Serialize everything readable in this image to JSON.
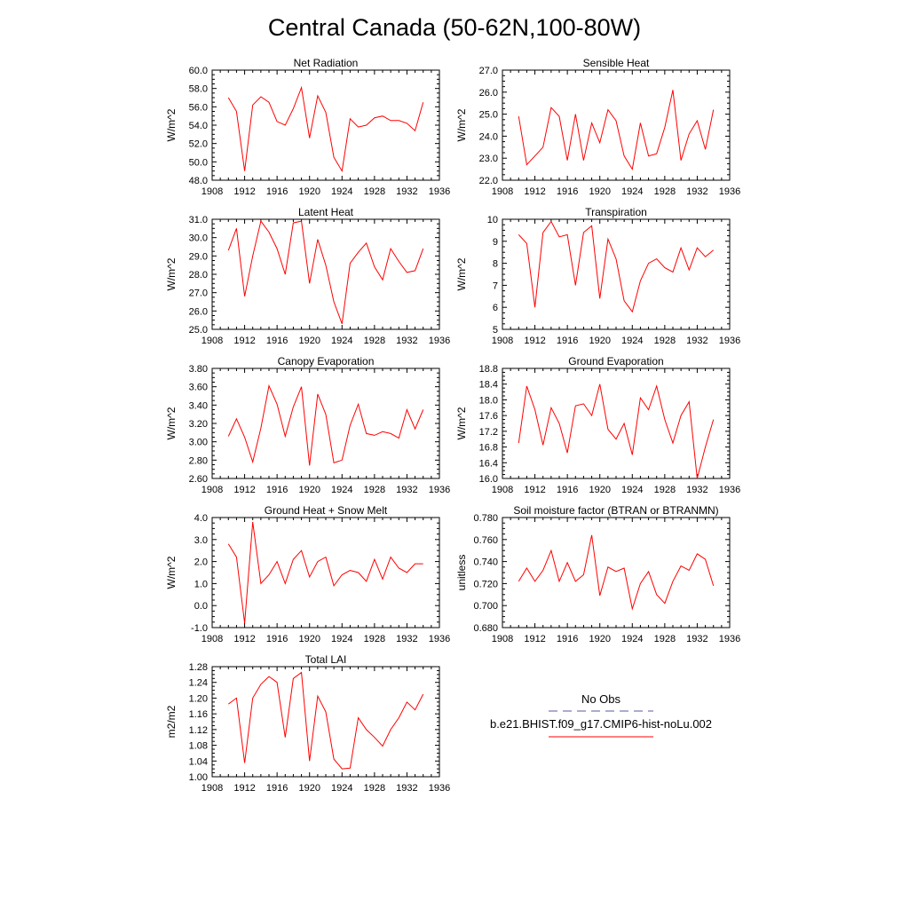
{
  "page_title": "Central Canada (50-62N,100-80W)",
  "years": [
    1910,
    1911,
    1912,
    1913,
    1914,
    1915,
    1916,
    1917,
    1918,
    1919,
    1920,
    1921,
    1922,
    1923,
    1924,
    1925,
    1926,
    1927,
    1928,
    1929,
    1930,
    1931,
    1932,
    1933,
    1934
  ],
  "series_color": "#ff0000",
  "obs_color": "#5a5a9e",
  "legend": {
    "obs_label": "No Obs",
    "model_label": "b.e21.BHIST.f09_g17.CMIP6-hist-noLu.002"
  },
  "chart_data": [
    {
      "type": "line",
      "title": "Net Radiation",
      "ylabel": "W/m^2",
      "xlim": [
        1908,
        1936
      ],
      "xticks": [
        "1908",
        "1912",
        "1916",
        "1920",
        "1924",
        "1928",
        "1932",
        "1936"
      ],
      "ylim": [
        48,
        60
      ],
      "yticks": [
        "48.0",
        "50.0",
        "52.0",
        "54.0",
        "56.0",
        "58.0",
        "60.0"
      ],
      "values": [
        57.0,
        55.5,
        49.0,
        56.2,
        57.1,
        56.5,
        54.4,
        54.0,
        55.8,
        58.1,
        52.6,
        57.2,
        55.4,
        50.5,
        49.0,
        54.7,
        53.8,
        54.0,
        54.8,
        55.0,
        54.5,
        54.5,
        54.2,
        53.4,
        56.5
      ]
    },
    {
      "type": "line",
      "title": "Sensible Heat",
      "ylabel": "W/m^2",
      "xlim": [
        1908,
        1936
      ],
      "xticks": [
        "1908",
        "1912",
        "1916",
        "1920",
        "1924",
        "1928",
        "1932",
        "1936"
      ],
      "ylim": [
        22,
        27
      ],
      "yticks": [
        "22.0",
        "23.0",
        "24.0",
        "25.0",
        "26.0",
        "27.0"
      ],
      "values": [
        24.9,
        22.7,
        23.1,
        23.5,
        25.3,
        24.9,
        22.9,
        25.0,
        22.9,
        24.6,
        23.7,
        25.2,
        24.7,
        23.1,
        22.5,
        24.6,
        23.1,
        23.2,
        24.4,
        26.1,
        22.9,
        24.1,
        24.7,
        23.4,
        25.2
      ]
    },
    {
      "type": "line",
      "title": "Latent Heat",
      "ylabel": "W/m^2",
      "xlim": [
        1908,
        1936
      ],
      "xticks": [
        "1908",
        "1912",
        "1916",
        "1920",
        "1924",
        "1928",
        "1932",
        "1936"
      ],
      "ylim": [
        25,
        31
      ],
      "yticks": [
        "25.0",
        "26.0",
        "27.0",
        "28.0",
        "29.0",
        "30.0",
        "31.0"
      ],
      "values": [
        29.3,
        30.5,
        26.8,
        29.0,
        30.9,
        30.3,
        29.4,
        28.0,
        30.8,
        30.9,
        27.5,
        29.9,
        28.5,
        26.5,
        25.3,
        28.6,
        29.2,
        29.7,
        28.4,
        27.7,
        29.4,
        28.7,
        28.1,
        28.2,
        29.4
      ]
    },
    {
      "type": "line",
      "title": "Transpiration",
      "ylabel": "W/m^2",
      "xlim": [
        1908,
        1936
      ],
      "xticks": [
        "1908",
        "1912",
        "1916",
        "1920",
        "1924",
        "1928",
        "1932",
        "1936"
      ],
      "ylim": [
        5,
        10
      ],
      "yticks": [
        "5",
        "6",
        "7",
        "8",
        "9",
        "10"
      ],
      "values": [
        9.3,
        8.9,
        6.0,
        9.4,
        9.9,
        9.2,
        9.3,
        7.0,
        9.4,
        9.7,
        6.4,
        9.1,
        8.2,
        6.3,
        5.8,
        7.2,
        8.0,
        8.2,
        7.8,
        7.6,
        8.7,
        7.7,
        8.7,
        8.3,
        8.6
      ]
    },
    {
      "type": "line",
      "title": "Canopy Evaporation",
      "ylabel": "W/m^2",
      "xlim": [
        1908,
        1936
      ],
      "xticks": [
        "1908",
        "1912",
        "1916",
        "1920",
        "1924",
        "1928",
        "1932",
        "1936"
      ],
      "ylim": [
        2.6,
        3.8
      ],
      "yticks": [
        "2.60",
        "2.80",
        "3.00",
        "3.20",
        "3.40",
        "3.60",
        "3.80"
      ],
      "values": [
        3.06,
        3.25,
        3.05,
        2.78,
        3.15,
        3.61,
        3.41,
        3.06,
        3.38,
        3.6,
        2.74,
        3.52,
        3.3,
        2.77,
        2.8,
        3.18,
        3.41,
        3.09,
        3.07,
        3.11,
        3.09,
        3.04,
        3.35,
        3.14,
        3.35
      ]
    },
    {
      "type": "line",
      "title": "Ground Evaporation",
      "ylabel": "W/m^2",
      "xlim": [
        1908,
        1936
      ],
      "xticks": [
        "1908",
        "1912",
        "1916",
        "1920",
        "1924",
        "1928",
        "1932",
        "1936"
      ],
      "ylim": [
        16.0,
        18.8
      ],
      "yticks": [
        "16.0",
        "16.4",
        "16.8",
        "17.2",
        "17.6",
        "18.0",
        "18.4",
        "18.8"
      ],
      "values": [
        16.9,
        18.35,
        17.75,
        16.85,
        17.8,
        17.4,
        16.65,
        17.85,
        17.9,
        17.6,
        18.4,
        17.25,
        17.0,
        17.4,
        16.6,
        18.05,
        17.75,
        18.35,
        17.5,
        16.9,
        17.6,
        17.95,
        16.0,
        16.8,
        17.5
      ]
    },
    {
      "type": "line",
      "title": "Ground Heat + Snow Melt",
      "ylabel": "W/m^2",
      "xlim": [
        1908,
        1936
      ],
      "xticks": [
        "1908",
        "1912",
        "1916",
        "1920",
        "1924",
        "1928",
        "1932",
        "1936"
      ],
      "ylim": [
        -1,
        4
      ],
      "yticks": [
        "-1.0",
        "0.0",
        "1.0",
        "2.0",
        "3.0",
        "4.0"
      ],
      "values": [
        2.8,
        2.2,
        -0.8,
        3.8,
        1.0,
        1.4,
        2.0,
        1.0,
        2.1,
        2.5,
        1.3,
        2.0,
        2.2,
        0.9,
        1.4,
        1.6,
        1.5,
        1.1,
        2.1,
        1.2,
        2.2,
        1.7,
        1.5,
        1.9,
        1.9
      ]
    },
    {
      "type": "line",
      "title": "Soil moisture factor (BTRAN or BTRANMN)",
      "ylabel": "unitless",
      "xlim": [
        1908,
        1936
      ],
      "xticks": [
        "1908",
        "1912",
        "1916",
        "1920",
        "1924",
        "1928",
        "1932",
        "1936"
      ],
      "ylim": [
        0.68,
        0.78
      ],
      "yticks": [
        "0.680",
        "0.700",
        "0.720",
        "0.740",
        "0.760",
        "0.780"
      ],
      "values": [
        0.722,
        0.734,
        0.722,
        0.732,
        0.75,
        0.722,
        0.739,
        0.722,
        0.728,
        0.764,
        0.709,
        0.735,
        0.731,
        0.734,
        0.697,
        0.72,
        0.731,
        0.71,
        0.702,
        0.722,
        0.736,
        0.732,
        0.747,
        0.742,
        0.718
      ]
    },
    {
      "type": "line",
      "title": "Total LAI",
      "ylabel": "m2/m2",
      "xlim": [
        1908,
        1936
      ],
      "xticks": [
        "1908",
        "1912",
        "1916",
        "1920",
        "1924",
        "1928",
        "1932",
        "1936"
      ],
      "ylim": [
        1.0,
        1.28
      ],
      "yticks": [
        "1.00",
        "1.04",
        "1.08",
        "1.12",
        "1.16",
        "1.20",
        "1.24",
        "1.28"
      ],
      "values": [
        1.185,
        1.2,
        1.035,
        1.2,
        1.235,
        1.255,
        1.24,
        1.1,
        1.25,
        1.265,
        1.04,
        1.205,
        1.165,
        1.045,
        1.02,
        1.022,
        1.15,
        1.12,
        1.1,
        1.078,
        1.12,
        1.15,
        1.19,
        1.17,
        1.21
      ]
    }
  ]
}
